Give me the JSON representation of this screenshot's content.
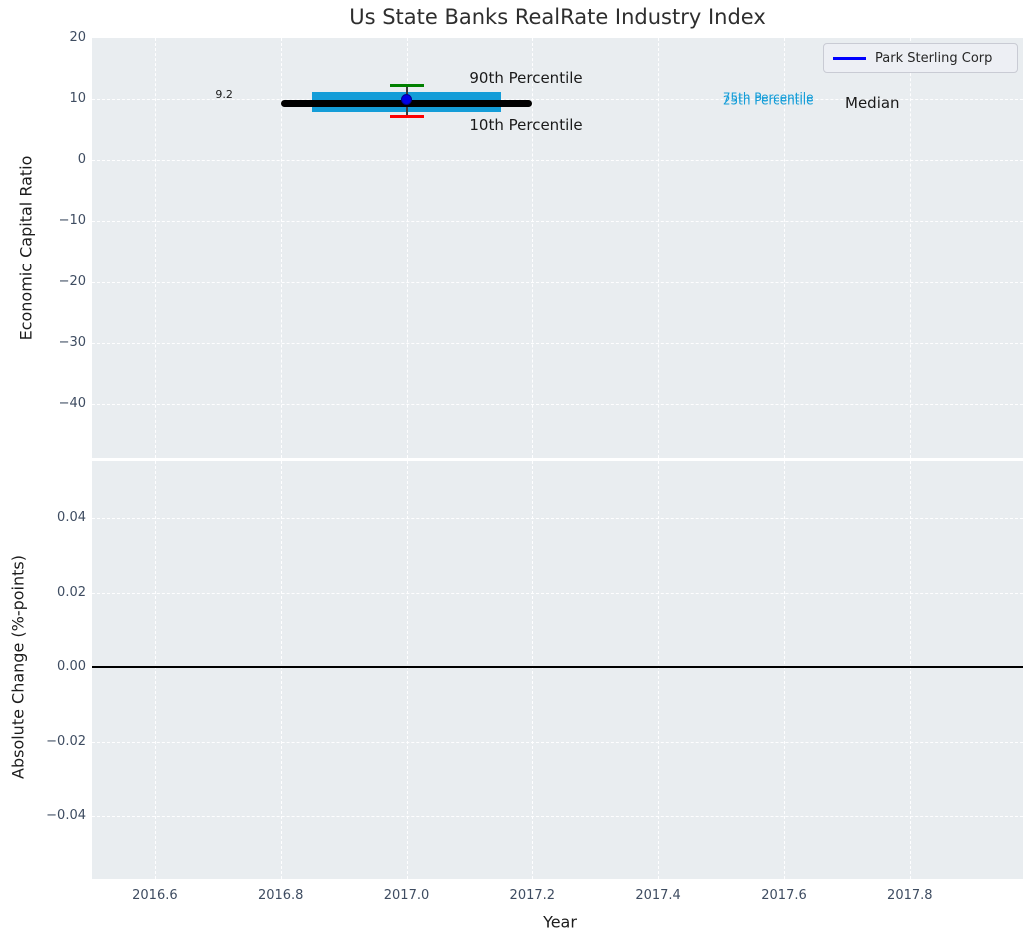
{
  "legend": {
    "label": "Park Sterling Corp",
    "line_color": "#0000ff"
  },
  "colors": {
    "plot_bg": "#e9edf0",
    "grid": "#ffffff",
    "box_fill": "#149dd8",
    "median_line": "#000000",
    "p90_cap": "#008000",
    "p10_cap": "#ff0000",
    "whisker": "#3a3a3a",
    "marker": "#0000e6",
    "marker_edge": "#000090",
    "tick_text": "#3e4c61",
    "label_text": "#1c1c1c",
    "title_text": "#2e2e2e",
    "zero_line": "#000000",
    "annotation_text": "#1a1a1a"
  },
  "chart_data": [
    {
      "type": "box",
      "title": "Us State Banks RealRate Industry Index",
      "ylabel": "Economic Capital Ratio",
      "xlim": [
        2016.5,
        2017.98
      ],
      "ylim": [
        -48.85,
        20
      ],
      "grid": true,
      "legend_position": "upper right",
      "yticks": [
        {
          "label": "20",
          "value": 20
        },
        {
          "label": "10",
          "value": 10
        },
        {
          "label": "0",
          "value": 0
        },
        {
          "label": "−10",
          "value": -10
        },
        {
          "label": "−20",
          "value": -20
        },
        {
          "label": "−30",
          "value": -30
        },
        {
          "label": "−40",
          "value": -40
        }
      ],
      "box": {
        "year": 2017.0,
        "median": 9.2,
        "median_span": [
          2016.8,
          2017.2
        ],
        "p75": 11.2,
        "p25": 7.8,
        "box_span": [
          2016.85,
          2017.15
        ],
        "p90": 12.3,
        "p10": 7.2,
        "cap_halfwidth": 0.027,
        "company": "Park Sterling Corp",
        "company_value": 10.0
      },
      "annotations": [
        {
          "text": "9.2",
          "x": 2016.71,
          "y": 10.7,
          "size": 11,
          "color": "#1a1a1a",
          "align": "center"
        },
        {
          "text": "90th Percentile",
          "x": 2017.1,
          "y": 13.5,
          "size": 15,
          "color": "#1a1a1a",
          "align": "left"
        },
        {
          "text": "10th Percentile",
          "x": 2017.1,
          "y": 5.8,
          "size": 15,
          "color": "#1a1a1a",
          "align": "left"
        },
        {
          "text": "75th Percentile",
          "x": 2017.503,
          "y": 10.2,
          "size": 12,
          "color": "#149dd8",
          "align": "left"
        },
        {
          "text": "25th Percentile",
          "x": 2017.503,
          "y": 9.6,
          "size": 12,
          "color": "#149dd8",
          "align": "left"
        },
        {
          "text": "Median",
          "x": 2017.697,
          "y": 9.3,
          "size": 15,
          "color": "#1a1a1a",
          "align": "left"
        }
      ]
    },
    {
      "type": "line",
      "ylabel": "Absolute Change (%-points)",
      "xlabel": "Year",
      "xlim": [
        2016.5,
        2017.98
      ],
      "ylim": [
        -0.0569,
        0.0553
      ],
      "grid": true,
      "zero_line": 0.0,
      "yticks": [
        {
          "label": "0.04",
          "value": 0.04
        },
        {
          "label": "0.02",
          "value": 0.02
        },
        {
          "label": "0.00",
          "value": 0.0
        },
        {
          "label": "−0.02",
          "value": -0.02
        },
        {
          "label": "−0.04",
          "value": -0.04
        }
      ],
      "xticks": [
        {
          "label": "2016.6",
          "value": 2016.6
        },
        {
          "label": "2016.8",
          "value": 2016.8
        },
        {
          "label": "2017.0",
          "value": 2017.0
        },
        {
          "label": "2017.2",
          "value": 2017.2
        },
        {
          "label": "2017.4",
          "value": 2017.4
        },
        {
          "label": "2017.6",
          "value": 2017.6
        },
        {
          "label": "2017.8",
          "value": 2017.8
        }
      ]
    }
  ]
}
